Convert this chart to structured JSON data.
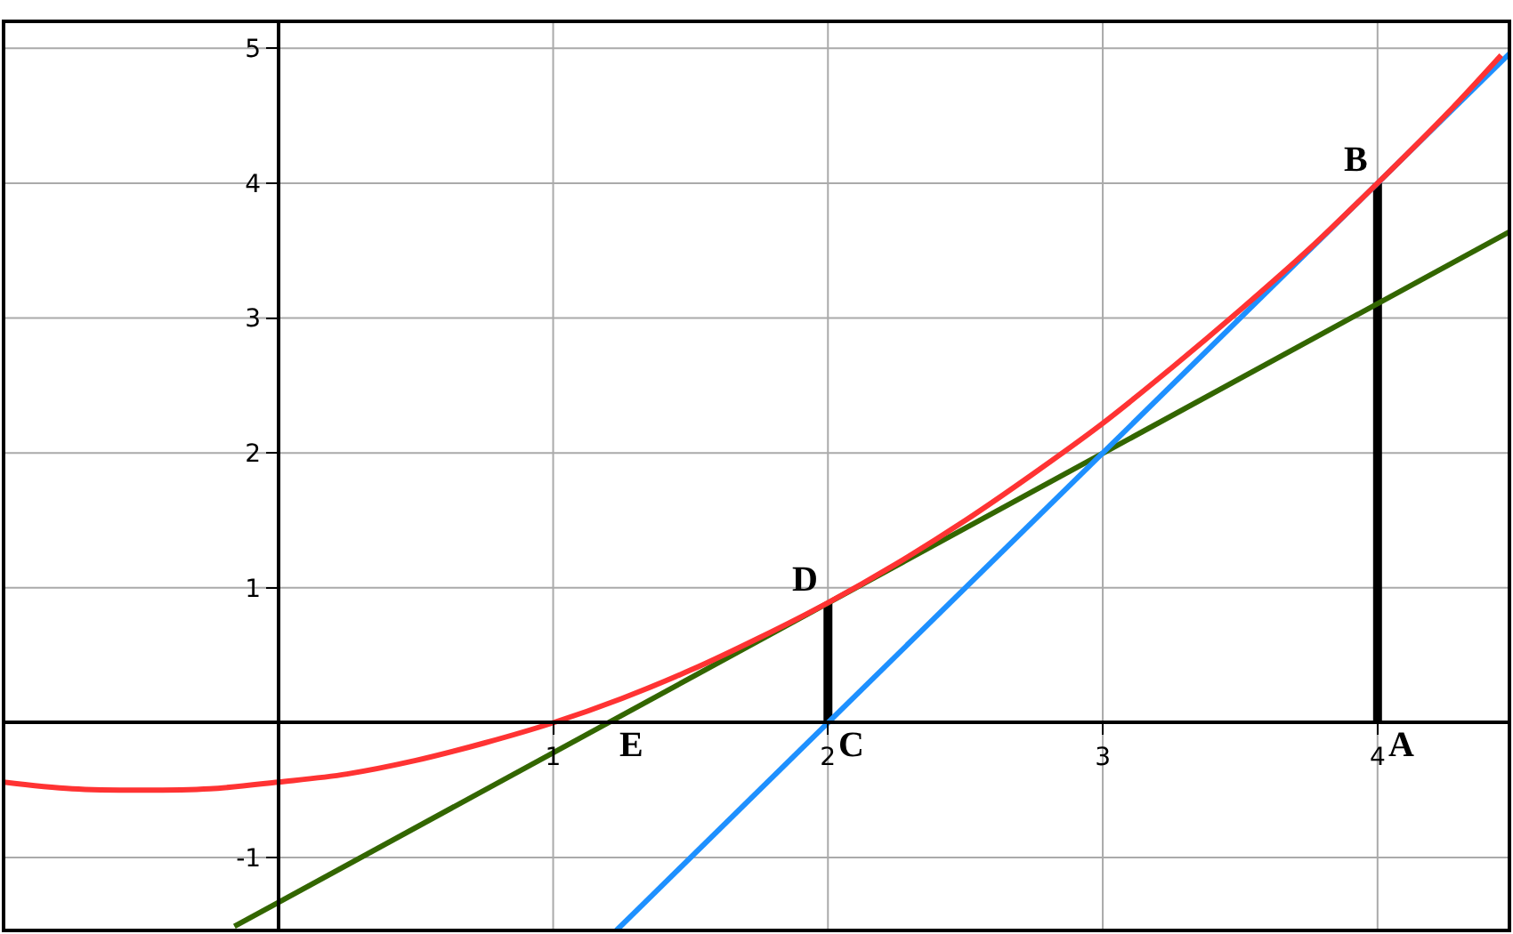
{
  "chart_data": {
    "type": "line",
    "xlim": [
      -1,
      4.48
    ],
    "ylim": [
      -1.54,
      5.2
    ],
    "xticks": [
      1,
      2,
      3,
      4
    ],
    "yticks": [
      -1,
      1,
      2,
      3,
      4,
      5
    ],
    "grid": true,
    "marker": "none",
    "line_style": "solid",
    "series": [
      {
        "color": "#ff3333",
        "x": [
          -1,
          -0.75,
          -0.5,
          -0.25,
          0,
          0.25,
          0.5,
          0.75,
          1,
          1.25,
          1.5,
          1.75,
          2,
          2.25,
          2.5,
          2.75,
          3,
          3.25,
          3.5,
          3.75,
          4,
          4.25,
          4.45
        ],
        "values": [
          -0.44,
          -0.49,
          -0.5,
          -0.49,
          -0.44,
          -0.38,
          -0.28,
          -0.15,
          0,
          0.18,
          0.39,
          0.63,
          0.89,
          1.18,
          1.5,
          1.85,
          2.22,
          2.63,
          3.06,
          3.51,
          4,
          4.51,
          4.95
        ]
      },
      {
        "color": "#1e90ff",
        "x": [
          1.23,
          4.48
        ],
        "values": [
          -1.54,
          4.96
        ]
      },
      {
        "color": "#336600",
        "x": [
          -0.16,
          4.48
        ],
        "values": [
          -1.51,
          3.64
        ]
      },
      {
        "color": "#000000",
        "x": [
          4,
          4
        ],
        "values": [
          0,
          4
        ]
      },
      {
        "color": "#000000",
        "x": [
          2,
          2
        ],
        "values": [
          0,
          0.89
        ]
      }
    ],
    "annotations": [
      {
        "text": "A",
        "x": 4,
        "y": 0
      },
      {
        "text": "B",
        "x": 4,
        "y": 4
      },
      {
        "text": "C",
        "x": 2,
        "y": 0
      },
      {
        "text": "D",
        "x": 2,
        "y": 0.89
      },
      {
        "text": "E",
        "x": 1.2,
        "y": 0
      }
    ]
  }
}
